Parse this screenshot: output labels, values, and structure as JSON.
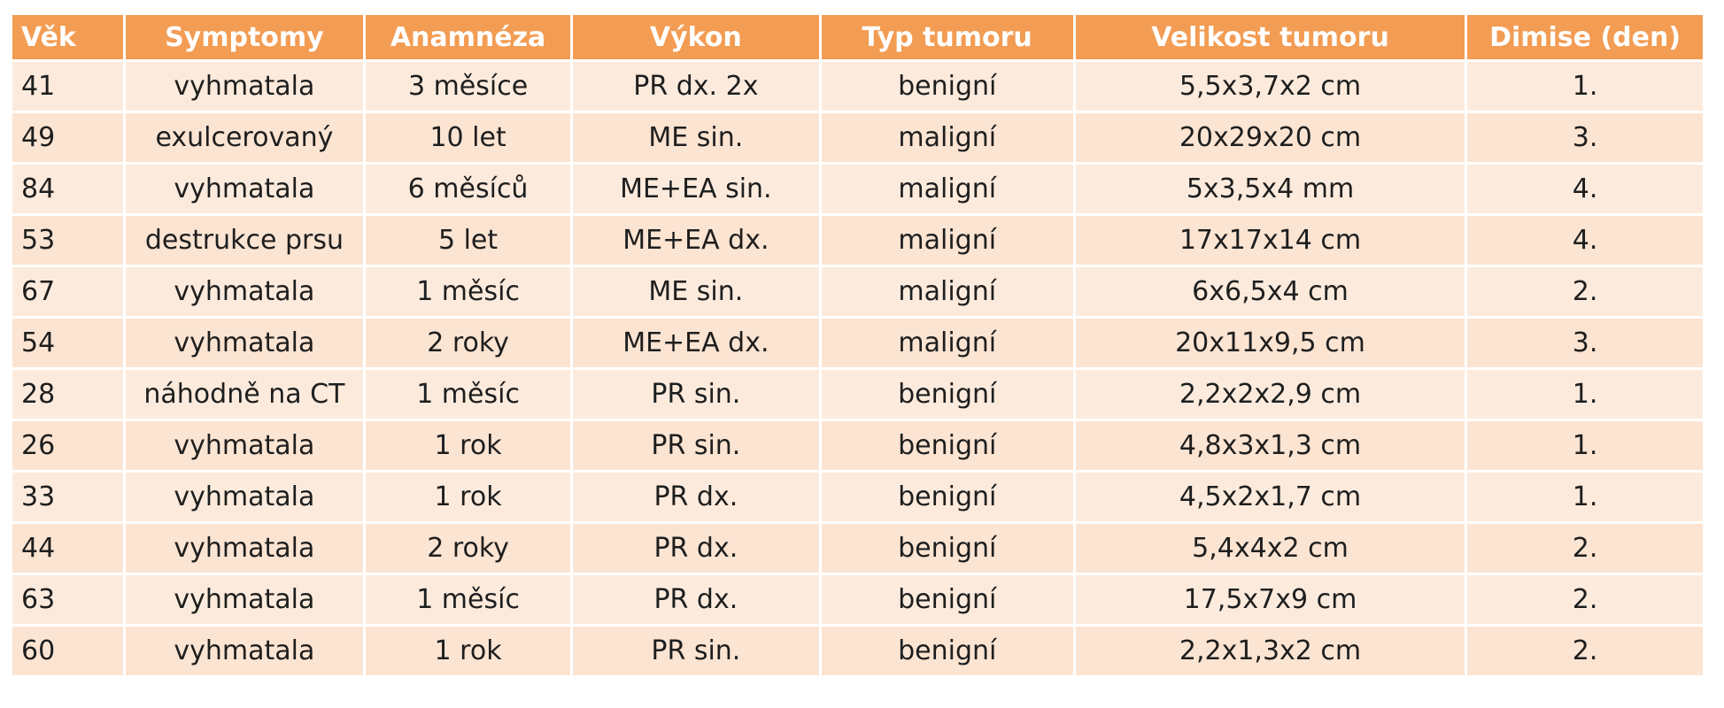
{
  "table": {
    "headers": [
      "Věk",
      "Symptomy",
      "Anamnéza",
      "Výkon",
      "Typ tumoru",
      "Velikost tumoru",
      "Dimise (den)"
    ],
    "rows": [
      [
        "41",
        "vyhmatala",
        "3 měsíce",
        "PR dx. 2x",
        "benigní",
        "5,5x3,7x2 cm",
        "1."
      ],
      [
        "49",
        "exulcerovaný",
        "10 let",
        "ME sin.",
        "maligní",
        "20x29x20 cm",
        "3."
      ],
      [
        "84",
        "vyhmatala",
        "6 měsíců",
        "ME+EA sin.",
        "maligní",
        "5x3,5x4 mm",
        "4."
      ],
      [
        "53",
        "destrukce prsu",
        "5 let",
        "ME+EA dx.",
        "maligní",
        "17x17x14 cm",
        "4."
      ],
      [
        "67",
        "vyhmatala",
        "1 měsíc",
        "ME sin.",
        "maligní",
        "6x6,5x4 cm",
        "2."
      ],
      [
        "54",
        "vyhmatala",
        "2 roky",
        "ME+EA dx.",
        "maligní",
        "20x11x9,5 cm",
        "3."
      ],
      [
        "28",
        "náhodně na CT",
        "1 měsíc",
        "PR sin.",
        "benigní",
        "2,2x2x2,9 cm",
        "1."
      ],
      [
        "26",
        "vyhmatala",
        "1 rok",
        "PR sin.",
        "benigní",
        "4,8x3x1,3 cm",
        "1."
      ],
      [
        "33",
        "vyhmatala",
        "1 rok",
        "PR dx.",
        "benigní",
        "4,5x2x1,7 cm",
        "1."
      ],
      [
        "44",
        "vyhmatala",
        "2 roky",
        "PR dx.",
        "benigní",
        "5,4x4x2 cm",
        "2."
      ],
      [
        "63",
        "vyhmatala",
        "1 měsíc",
        "PR dx.",
        "benigní",
        "17,5x7x9 cm",
        "2."
      ],
      [
        "60",
        "vyhmatala",
        "1 rok",
        "PR sin.",
        "benigní",
        "2,2x1,3x2 cm",
        "2."
      ]
    ]
  },
  "colors": {
    "header_bg": "#F39C53",
    "header_text": "#FFFFFF",
    "row_bg": "#FCEBDD",
    "text": "#1E1E1E"
  }
}
